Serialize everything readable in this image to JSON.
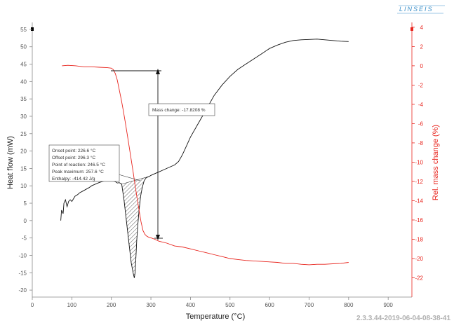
{
  "logo_text": "LINSEIS",
  "watermark": "2.3.3.44-2019-06-04-08-38-41",
  "colors": {
    "heat": "#111111",
    "mass": "#e8241d",
    "accent": "#3a8fc9"
  },
  "chart_data": {
    "type": "line",
    "xlabel": "Temperature (°C)",
    "ylabel": "Heat flow (mW)",
    "y2label": "Rel. mass change (%)",
    "xlim": [
      0,
      960
    ],
    "ylim": [
      -22,
      57
    ],
    "y2lim": [
      -24,
      4.5
    ],
    "x_ticks": [
      0,
      100,
      200,
      300,
      400,
      500,
      600,
      700,
      800,
      900
    ],
    "y_ticks": [
      -20,
      -15,
      -10,
      -5,
      0,
      5,
      10,
      15,
      20,
      25,
      30,
      35,
      40,
      45,
      50,
      55
    ],
    "y2_ticks": [
      -22,
      -20,
      -18,
      -16,
      -14,
      -12,
      -10,
      -8,
      -6,
      -4,
      -2,
      0,
      2,
      4
    ],
    "series": [
      {
        "axis": "left",
        "x": [
          72,
          74,
          78,
          80,
          84,
          88,
          92,
          96,
          100,
          108,
          115,
          120,
          128,
          136,
          144,
          150,
          160,
          170,
          180,
          190,
          200,
          210,
          215,
          220,
          226,
          232,
          238,
          244,
          250,
          255,
          258,
          260,
          262,
          264,
          267,
          270,
          274,
          278,
          283,
          288,
          293,
          296,
          300,
          310,
          320,
          330,
          340,
          350,
          360,
          370,
          380,
          390,
          400,
          420,
          440,
          460,
          480,
          500,
          520,
          540,
          560,
          580,
          600,
          620,
          640,
          660,
          680,
          700,
          720,
          740,
          760,
          780,
          800
        ],
        "y": [
          0,
          3,
          2,
          5,
          6,
          4,
          5.5,
          6,
          5.5,
          7,
          7.5,
          8,
          8.5,
          9,
          9.5,
          10,
          10.5,
          11,
          11.3,
          11.6,
          11.5,
          11.2,
          10.8,
          10.9,
          10.5,
          6,
          0,
          -6,
          -12,
          -15,
          -16.5,
          -15,
          -11,
          -6,
          -1,
          3,
          7,
          9.5,
          11.5,
          12.3,
          12.6,
          12.7,
          13,
          13.5,
          14,
          14.5,
          15,
          15.5,
          16,
          17,
          19,
          21.5,
          24,
          28,
          32,
          36,
          39,
          41.5,
          43.5,
          45,
          46.5,
          48,
          49.5,
          50.5,
          51.3,
          51.8,
          52,
          52.1,
          52.2,
          52,
          51.8,
          51.6,
          51.5
        ]
      },
      {
        "axis": "right",
        "x": [
          75,
          90,
          110,
          130,
          150,
          170,
          190,
          200,
          205,
          210,
          215,
          220,
          225,
          230,
          235,
          240,
          245,
          250,
          255,
          260,
          265,
          270,
          275,
          280,
          285,
          290,
          295,
          300,
          310,
          320,
          340,
          360,
          380,
          400,
          420,
          440,
          460,
          480,
          500,
          520,
          540,
          560,
          580,
          600,
          620,
          640,
          660,
          680,
          700,
          720,
          740,
          760,
          780,
          800
        ],
        "y": [
          0,
          0.05,
          0,
          -0.1,
          -0.1,
          -0.15,
          -0.2,
          -0.25,
          -0.4,
          -0.8,
          -1.5,
          -2.5,
          -3.5,
          -4.6,
          -5.8,
          -7.1,
          -8.4,
          -9.7,
          -11,
          -12.4,
          -13.7,
          -15,
          -16.2,
          -17.1,
          -17.5,
          -17.7,
          -17.8,
          -17.85,
          -18,
          -18.2,
          -18.4,
          -18.7,
          -18.8,
          -19,
          -19.2,
          -19.4,
          -19.6,
          -19.8,
          -20,
          -20.1,
          -20.2,
          -20.25,
          -20.3,
          -20.35,
          -20.4,
          -20.5,
          -20.5,
          -20.6,
          -20.65,
          -20.6,
          -20.6,
          -20.55,
          -20.5,
          -20.4
        ]
      }
    ],
    "dsc_annotation": [
      "Onset point: 226.6 °C",
      "Offset point: 296.3 °C",
      "Point of reaction: 246.5 °C",
      "Peak maximum: 257.6 °C",
      "Enthalpy: -414.42 J/g"
    ],
    "mass_annotation": "Mass change: -17.8208 %"
  }
}
